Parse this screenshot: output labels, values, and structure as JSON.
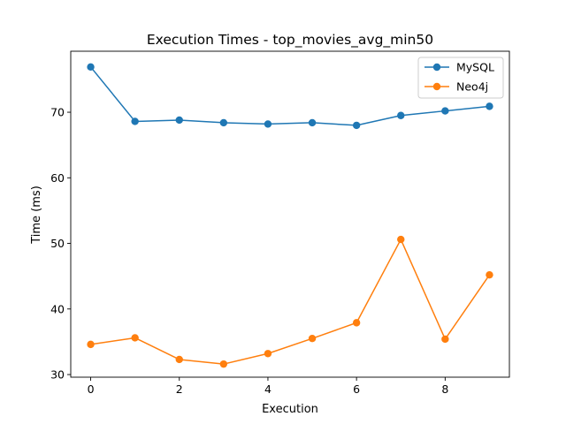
{
  "chart_data": {
    "type": "line",
    "title": "Execution Times - top_movies_avg_min50",
    "xlabel": "Execution",
    "ylabel": "Time (ms)",
    "x": [
      0,
      1,
      2,
      3,
      4,
      5,
      6,
      7,
      8,
      9
    ],
    "xlim": [
      -0.45,
      9.45
    ],
    "ylim": [
      29.6,
      79.3
    ],
    "xticks": [
      0,
      2,
      4,
      6,
      8
    ],
    "yticks": [
      30,
      40,
      50,
      60,
      70
    ],
    "grid": false,
    "legend_position": "top-right",
    "series": [
      {
        "name": "MySQL",
        "color": "#1f77b4",
        "marker": "circle",
        "values": [
          76.9,
          68.6,
          68.8,
          68.4,
          68.2,
          68.4,
          68.0,
          69.5,
          70.2,
          70.9
        ]
      },
      {
        "name": "Neo4j",
        "color": "#ff7f0e",
        "marker": "circle",
        "values": [
          34.6,
          35.6,
          32.3,
          31.6,
          33.2,
          35.5,
          37.9,
          50.6,
          35.4,
          45.2
        ]
      }
    ]
  }
}
